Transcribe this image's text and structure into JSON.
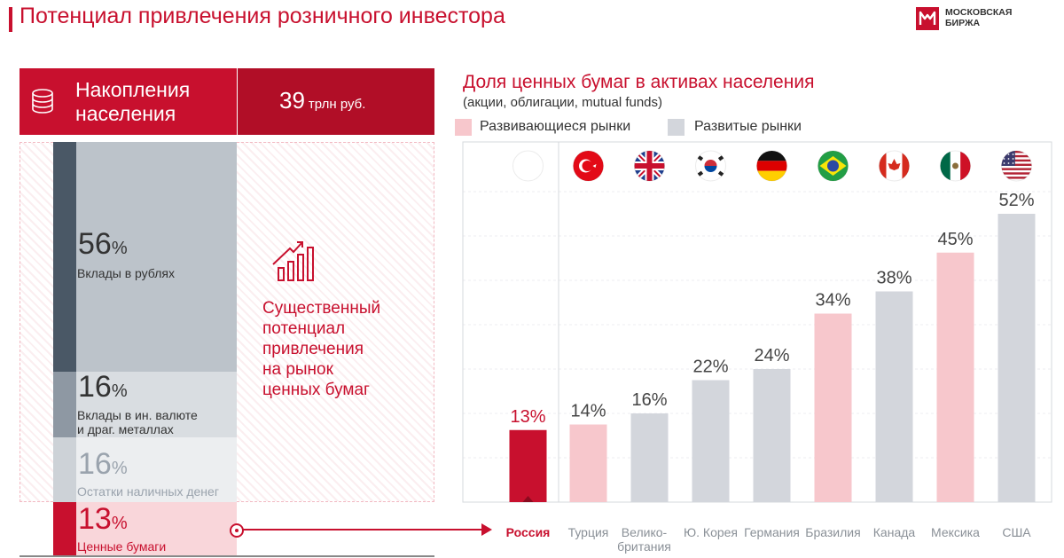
{
  "header": {
    "title": "Потенциал привлечения розничного инвестора",
    "logo_line1": "МОСКОВСКАЯ",
    "logo_line2": "БИРЖА"
  },
  "savings": {
    "label_line1": "Накопления",
    "label_line2": "населения",
    "value": "39",
    "unit": "трлн руб.",
    "segments": [
      {
        "value": "56",
        "pct_sign": "%",
        "name_line1": "Вклады в рублях",
        "name_line2": ""
      },
      {
        "value": "16",
        "pct_sign": "%",
        "name_line1": "Вклады в ин. валюте",
        "name_line2": "и драг. металлах"
      },
      {
        "value": "16",
        "pct_sign": "%",
        "name_line1": "Остатки наличных денег",
        "name_line2": ""
      },
      {
        "value": "13",
        "pct_sign": "%",
        "name_line1": "Ценные бумаги",
        "name_line2": ""
      }
    ],
    "potential_lines": [
      "Существенный",
      "потенциал",
      "привлечения",
      "на рынок",
      "ценных бумаг"
    ]
  },
  "chart_data": {
    "type": "bar",
    "title": "Доля ценных бумаг в активах населения",
    "subtitle": "(акции, облигации, mutual funds)",
    "legend": [
      {
        "label": "Развивающиеся рынки",
        "color": "#f7c7cc"
      },
      {
        "label": "Развитые рынки",
        "color": "#d3d6dc"
      }
    ],
    "categories": [
      "Россия",
      "Турция",
      "Велико-\nбритания",
      "Ю. Корея",
      "Германия",
      "Бразилия",
      "Канада",
      "Мексика",
      "США"
    ],
    "values": [
      13,
      14,
      16,
      22,
      24,
      34,
      38,
      45,
      52
    ],
    "value_labels": [
      "13%",
      "14%",
      "16%",
      "22%",
      "24%",
      "34%",
      "38%",
      "45%",
      "52%"
    ],
    "market": [
      "highlight",
      "emerging",
      "developed",
      "developed",
      "developed",
      "emerging",
      "developed",
      "emerging",
      "developed"
    ],
    "colors": {
      "highlight": "#c8102e",
      "emerging": "#f7c7cc",
      "developed": "#d3d6dc"
    },
    "flags": [
      "flag-russia-icon",
      "flag-turkey-icon",
      "flag-uk-icon",
      "flag-south-korea-icon",
      "flag-germany-icon",
      "flag-brazil-icon",
      "flag-canada-icon",
      "flag-mexico-icon",
      "flag-usa-icon"
    ],
    "ylim": [
      0,
      60
    ],
    "grid": true
  }
}
